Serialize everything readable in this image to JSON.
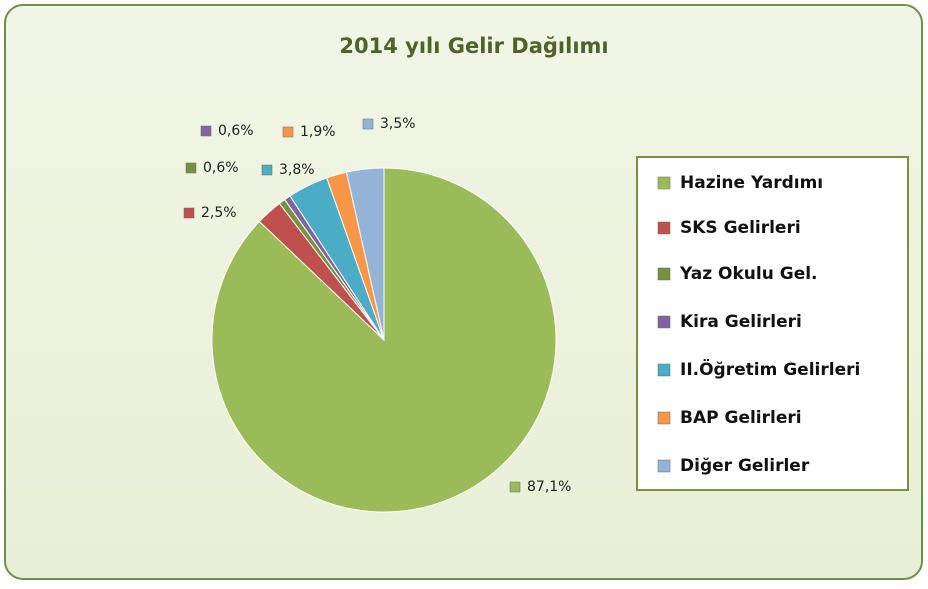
{
  "chart_data": {
    "type": "pie",
    "title": "2014 yılı Gelir Dağılımı",
    "categories": [
      "Hazine Yardımı",
      "SKS Gelirleri",
      "Yaz Okulu Gel.",
      "Kira Gelirleri",
      "II.Öğretim Gelirleri",
      "BAP Gelirleri",
      "Diğer Gelirler"
    ],
    "values": [
      87.1,
      2.5,
      0.6,
      0.6,
      3.8,
      1.9,
      3.5
    ],
    "value_labels": [
      "87,1%",
      "2,5%",
      "0,6%",
      "0,6%",
      "3,8%",
      "1,9%",
      "3,5%"
    ],
    "colors": [
      "#9bbb59",
      "#c0504d",
      "#76923c",
      "#8064a2",
      "#4bacc6",
      "#f79646",
      "#95b3d7"
    ],
    "legend": "right"
  }
}
